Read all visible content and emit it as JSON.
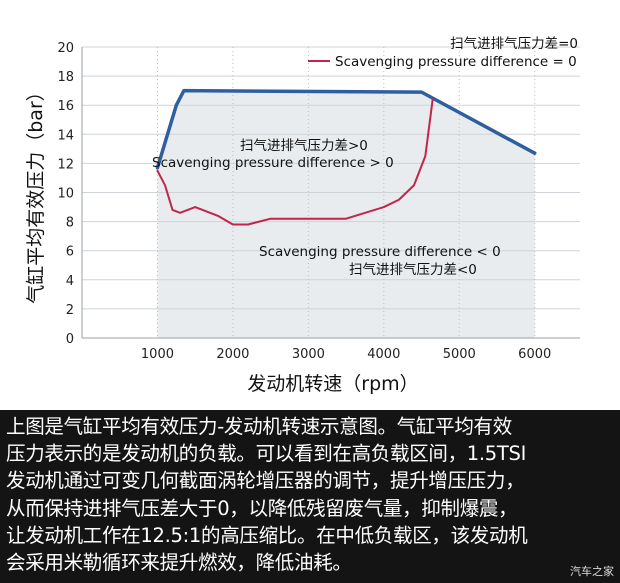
{
  "chart_data": {
    "type": "area",
    "xlabel": "发动机转速（rpm）",
    "ylabel": "气缸平均有效压力（bar）",
    "xlim": [
      0,
      6600
    ],
    "ylim": [
      0,
      20
    ],
    "x_ticks": [
      1000,
      2000,
      3000,
      4000,
      5000,
      6000
    ],
    "y_ticks": [
      0,
      2,
      4,
      6,
      8,
      10,
      12,
      14,
      16,
      18,
      20
    ],
    "grid": "horizontal",
    "series": [
      {
        "name": "",
        "color": "#2e5f9e",
        "x": [
          1000,
          1250,
          1350,
          4500,
          6000
        ],
        "y": [
          11.7,
          16.0,
          17.0,
          16.9,
          12.7
        ]
      },
      {
        "name": "Scavenging pressure difference = 0",
        "color": "#c0264b",
        "x": [
          1000,
          1100,
          1200,
          1300,
          1500,
          1800,
          2000,
          2200,
          2500,
          3000,
          3500,
          4000,
          4200,
          4400,
          4550,
          4600,
          4650
        ],
        "y": [
          11.5,
          10.5,
          8.8,
          8.6,
          9.0,
          8.4,
          7.8,
          7.8,
          8.2,
          8.2,
          8.2,
          9.0,
          9.5,
          10.5,
          12.5,
          14.5,
          16.5
        ]
      }
    ],
    "annotations": {
      "top_right_cn": "扫气进排气压力差=0",
      "legend_label": "Scavenging pressure difference = 0",
      "above_cn": "扫气进排气压力差>0",
      "above_en": "Scavenging pressure difference > 0",
      "below_en": "Scavenging pressure difference < 0",
      "below_cn": "扫气进排气压力差<0"
    }
  },
  "caption": {
    "lines": [
      "上图是气缸平均有效压力-发动机转速示意图。气缸平均有效",
      "压力表示的是发动机的负载。可以看到在高负载区间，1.5TSI",
      "发动机通过可变几何截面涡轮增压器的调节，提升增压压力，",
      "从而保持进排气压差大于0，以降低残留废气量，抑制爆震，",
      "让发动机工作在12.5:1的高压缩比。在中低负载区，该发动机",
      "会采用米勒循环来提升燃效，降低油耗。"
    ]
  },
  "watermark": "汽车之家"
}
